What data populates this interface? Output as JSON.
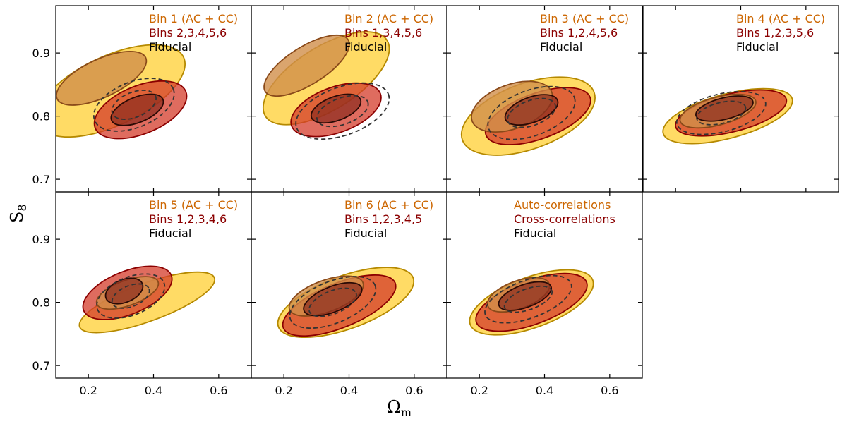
{
  "chart_data": {
    "type": "contour",
    "xlabel": "Ω",
    "xlabel_sub": "m",
    "ylabel": "S",
    "ylabel_sub": "8",
    "xlim": [
      0.1,
      0.7
    ],
    "ylim": [
      0.68,
      0.975
    ],
    "xticks": [
      "0.2",
      "0.4",
      "0.6"
    ],
    "yticks": [
      "0.7",
      "0.8",
      "0.9"
    ],
    "colors": {
      "bin_fill": "#ffd54a",
      "bin_fill_inner": "#d18f4a",
      "bin_edge": "#b58900",
      "bin_edge_inner": "#8a4a1a",
      "rest_fill": "#d43b2a",
      "rest_fill_inner": "#8a2b1e",
      "rest_edge": "#8b0000",
      "fid_edge": "#333333",
      "legend_bin": "#cc6600",
      "legend_rest": "#8b0000",
      "legend_fid": "#000000"
    },
    "panels": [
      {
        "legend": [
          "Bin 1 (AC + CC)",
          "Bins 2,3,4,5,6",
          "Fiducial"
        ],
        "bin": {
          "cx": 0.27,
          "cy": 0.84,
          "w": 0.245,
          "h": 0.055,
          "angle": -25,
          "cx1": 0.24,
          "cy1": 0.86,
          "w1": 0.15,
          "h1": 0.03
        },
        "rest": {
          "cx": 0.36,
          "cy": 0.81,
          "w": 0.15,
          "h": 0.038,
          "angle": -22,
          "cx1": 0.35,
          "cy1": 0.81,
          "w1": 0.085,
          "h1": 0.02
        },
        "fid": {
          "cx": 0.34,
          "cy": 0.818,
          "w": 0.13,
          "h": 0.036,
          "angle": -22
        }
      },
      {
        "legend": [
          "Bin 2 (AC + CC)",
          "Bins 1,3,4,5,6",
          "Fiducial"
        ],
        "bin": {
          "cx": 0.33,
          "cy": 0.86,
          "w": 0.22,
          "h": 0.05,
          "angle": -32,
          "cx1": 0.27,
          "cy1": 0.88,
          "w1": 0.15,
          "h1": 0.03
        },
        "rest": {
          "cx": 0.36,
          "cy": 0.81,
          "w": 0.145,
          "h": 0.036,
          "angle": -20,
          "cx1": 0.36,
          "cy1": 0.812,
          "w1": 0.08,
          "h1": 0.019
        },
        "fid": {
          "cx": 0.38,
          "cy": 0.808,
          "w": 0.15,
          "h": 0.038,
          "angle": -20
        }
      },
      {
        "legend": [
          "Bin 3 (AC + CC)",
          "Bins 1,2,4,5,6",
          "Fiducial"
        ],
        "bin": {
          "cx": 0.35,
          "cy": 0.8,
          "w": 0.215,
          "h": 0.052,
          "angle": -20,
          "cx1": 0.3,
          "cy1": 0.815,
          "w1": 0.13,
          "h1": 0.035
        },
        "rest": {
          "cx": 0.38,
          "cy": 0.8,
          "w": 0.17,
          "h": 0.036,
          "angle": -20,
          "cx1": 0.36,
          "cy1": 0.81,
          "w1": 0.085,
          "h1": 0.02
        },
        "fid": {
          "cx": 0.36,
          "cy": 0.805,
          "w": 0.14,
          "h": 0.036,
          "angle": -20
        }
      },
      {
        "legend": [
          "Bin 4 (AC + CC)",
          "Bins 1,2,3,5,6",
          "Fiducial"
        ],
        "bin": {
          "cx": 0.36,
          "cy": 0.8,
          "w": 0.205,
          "h": 0.035,
          "angle": -15,
          "cx1": 0.33,
          "cy1": 0.808,
          "w1": 0.12,
          "h1": 0.022
        },
        "rest": {
          "cx": 0.37,
          "cy": 0.805,
          "w": 0.175,
          "h": 0.03,
          "angle": -14,
          "cx1": 0.35,
          "cy1": 0.812,
          "w1": 0.09,
          "h1": 0.017
        },
        "fid": {
          "cx": 0.34,
          "cy": 0.805,
          "w": 0.14,
          "h": 0.03,
          "angle": -14
        }
      },
      {
        "legend": [
          "Bin 5 (AC + CC)",
          "Bins 1,2,3,4,6",
          "Fiducial"
        ],
        "bin": {
          "cx": 0.38,
          "cy": 0.8,
          "w": 0.22,
          "h": 0.03,
          "angle": -20,
          "cx1": 0.32,
          "cy1": 0.815,
          "w1": 0.1,
          "h1": 0.02
        },
        "rest": {
          "cx": 0.32,
          "cy": 0.815,
          "w": 0.145,
          "h": 0.034,
          "angle": -22,
          "cx1": 0.31,
          "cy1": 0.818,
          "w1": 0.06,
          "h1": 0.018
        },
        "fid": {
          "cx": 0.33,
          "cy": 0.81,
          "w": 0.11,
          "h": 0.03,
          "angle": -22
        }
      },
      {
        "legend": [
          "Bin 6 (AC + CC)",
          "Bins 1,2,3,4,5",
          "Fiducial"
        ],
        "bin": {
          "cx": 0.39,
          "cy": 0.8,
          "w": 0.22,
          "h": 0.042,
          "angle": -20,
          "cx1": 0.33,
          "cy1": 0.81,
          "w1": 0.12,
          "h1": 0.025
        },
        "rest": {
          "cx": 0.37,
          "cy": 0.795,
          "w": 0.185,
          "h": 0.035,
          "angle": -22,
          "cx1": 0.35,
          "cy1": 0.805,
          "w1": 0.095,
          "h1": 0.02
        },
        "fid": {
          "cx": 0.35,
          "cy": 0.8,
          "w": 0.14,
          "h": 0.033,
          "angle": -22
        }
      },
      {
        "legend": [
          "Auto-correlations",
          "Cross-correlations",
          "Fiducial"
        ],
        "bin": {
          "cx": 0.36,
          "cy": 0.8,
          "w": 0.2,
          "h": 0.04,
          "angle": -20,
          "cx1": 0.32,
          "cy1": 0.812,
          "w1": 0.1,
          "h1": 0.022
        },
        "rest": {
          "cx": 0.36,
          "cy": 0.8,
          "w": 0.18,
          "h": 0.035,
          "angle": -20,
          "cx1": 0.34,
          "cy1": 0.81,
          "w1": 0.085,
          "h1": 0.018
        },
        "fid": {
          "cx": 0.35,
          "cy": 0.805,
          "w": 0.14,
          "h": 0.03,
          "angle": -20
        }
      }
    ]
  }
}
